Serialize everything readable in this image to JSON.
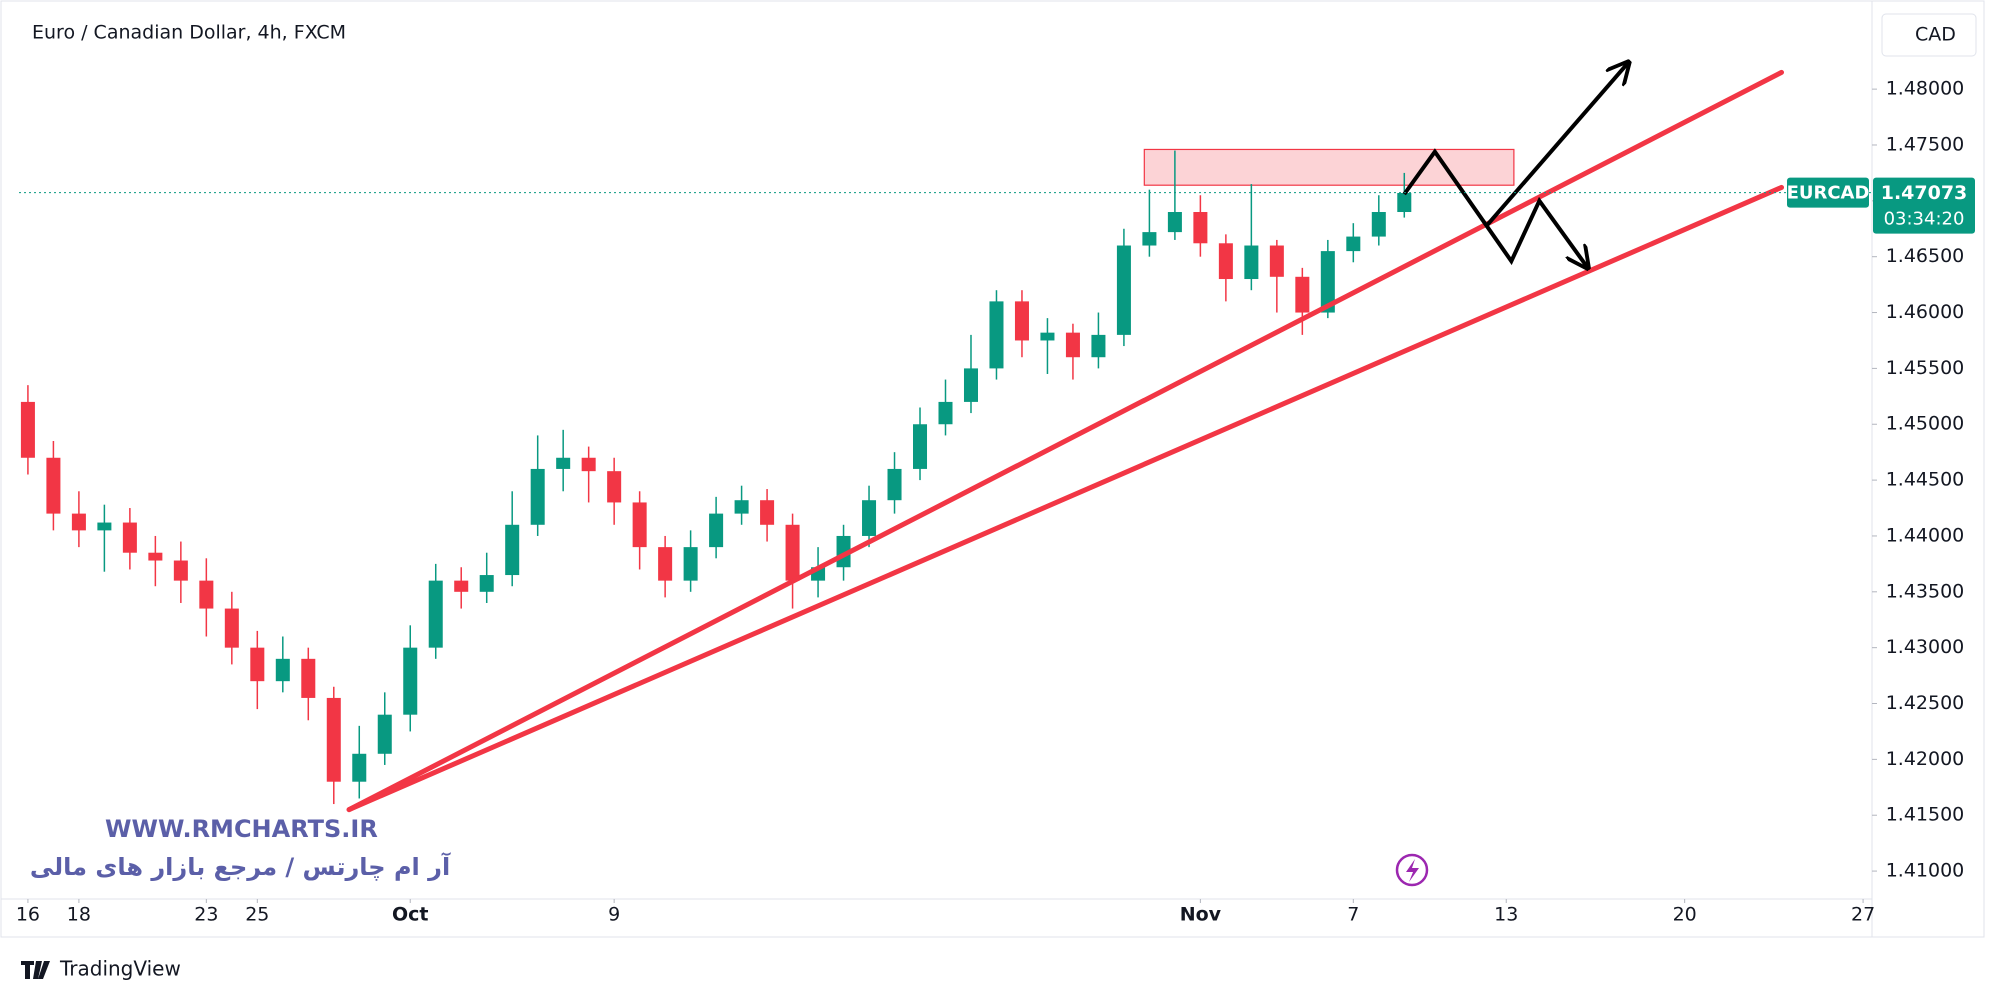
{
  "chart_data": {
    "type": "candlestick",
    "title": "Euro / Canadian Dollar, 4h, FXCM",
    "currency": "CAD",
    "symbol": "EURCAD",
    "last_price": 1.47073,
    "countdown": "03:34:20",
    "watermark": "WWW.RMCHARTS.IR",
    "watermark_subtitle": "آر ام چارتس / مرجع بازار های مالی",
    "brand": "TradingView",
    "grid": false,
    "up_color": "#089981",
    "down_color": "#f23645",
    "xlim": [
      15.65,
      88.35
    ],
    "ylim": [
      1.4075,
      1.4878
    ],
    "xticks": [
      18,
      25,
      {
        "value": 31,
        "label": "Oct"
      },
      {
        "value": 39,
        "label": "9"
      },
      16,
      23,
      {
        "value": 62,
        "label": "Nov"
      },
      {
        "value": 68,
        "label": "7"
      },
      {
        "value": 74,
        "label": "13"
      },
      {
        "value": 81,
        "label": "20"
      },
      {
        "value": 88,
        "label": "27"
      }
    ],
    "yticks": [
      {
        "value": 1.41,
        "label": "1.41000"
      },
      {
        "value": 1.415,
        "label": "1.41500"
      },
      {
        "value": 1.42,
        "label": "1.42000"
      },
      {
        "value": 1.425,
        "label": "1.42500"
      },
      {
        "value": 1.43,
        "label": "1.43000"
      },
      {
        "value": 1.435,
        "label": "1.43500"
      },
      {
        "value": 1.44,
        "label": "1.44000"
      },
      {
        "value": 1.445,
        "label": "1.44500"
      },
      {
        "value": 1.45,
        "label": "1.45000"
      },
      {
        "value": 1.455,
        "label": "1.45500"
      },
      {
        "value": 1.46,
        "label": "1.46000"
      },
      {
        "value": 1.465,
        "label": "1.46500"
      },
      {
        "value": 1.47,
        "label": "1.47000"
      },
      {
        "value": 1.475,
        "label": "1.47500"
      },
      {
        "value": 1.48,
        "label": "1.48000"
      }
    ],
    "x": [
      16,
      17,
      18,
      19,
      20,
      21,
      22,
      23,
      24,
      25,
      26,
      27,
      28,
      29,
      30,
      31,
      32,
      33,
      34,
      35,
      36,
      37,
      38,
      39,
      40,
      41,
      42,
      43,
      44,
      45,
      46,
      47,
      48,
      49,
      50,
      51,
      52,
      53,
      54,
      55,
      56,
      57,
      58,
      59,
      60,
      61,
      62,
      63,
      64,
      65,
      66,
      67,
      68,
      69,
      70
    ],
    "open": [
      1.452,
      1.447,
      1.442,
      1.4405,
      1.4412,
      1.4385,
      1.4378,
      1.436,
      1.4335,
      1.43,
      1.427,
      1.429,
      1.4255,
      1.418,
      1.4205,
      1.424,
      1.43,
      1.436,
      1.435,
      1.4365,
      1.441,
      1.446,
      1.447,
      1.4458,
      1.443,
      1.439,
      1.436,
      1.439,
      1.442,
      1.4432,
      1.441,
      1.436,
      1.4372,
      1.44,
      1.4432,
      1.446,
      1.45,
      1.452,
      1.455,
      1.461,
      1.4575,
      1.4582,
      1.456,
      1.458,
      1.466,
      1.4672,
      1.469,
      1.4662,
      1.463,
      1.466,
      1.4632,
      1.46,
      1.4655,
      1.4668,
      1.469
    ],
    "high": [
      1.4535,
      1.4485,
      1.444,
      1.4428,
      1.4425,
      1.44,
      1.4395,
      1.438,
      1.435,
      1.4315,
      1.431,
      1.43,
      1.4265,
      1.423,
      1.426,
      1.432,
      1.4375,
      1.4372,
      1.4385,
      1.444,
      1.449,
      1.4495,
      1.448,
      1.447,
      1.444,
      1.44,
      1.4405,
      1.4435,
      1.4445,
      1.4442,
      1.442,
      1.439,
      1.441,
      1.4445,
      1.4475,
      1.4515,
      1.454,
      1.458,
      1.462,
      1.462,
      1.4595,
      1.459,
      1.46,
      1.4675,
      1.471,
      1.4745,
      1.4705,
      1.467,
      1.4715,
      1.4665,
      1.464,
      1.4665,
      1.468,
      1.4705,
      1.4725
    ],
    "low": [
      1.4455,
      1.4405,
      1.439,
      1.4368,
      1.437,
      1.4355,
      1.434,
      1.431,
      1.4285,
      1.4245,
      1.426,
      1.4235,
      1.416,
      1.4165,
      1.4195,
      1.4225,
      1.429,
      1.4335,
      1.434,
      1.4355,
      1.44,
      1.444,
      1.443,
      1.441,
      1.437,
      1.4345,
      1.435,
      1.438,
      1.441,
      1.4395,
      1.4335,
      1.4345,
      1.436,
      1.439,
      1.442,
      1.445,
      1.449,
      1.451,
      1.454,
      1.456,
      1.4545,
      1.454,
      1.455,
      1.457,
      1.465,
      1.4665,
      1.465,
      1.461,
      1.462,
      1.46,
      1.458,
      1.4595,
      1.4645,
      1.466,
      1.4685
    ],
    "close": [
      1.447,
      1.442,
      1.4405,
      1.4412,
      1.4385,
      1.4378,
      1.436,
      1.4335,
      1.43,
      1.427,
      1.429,
      1.4255,
      1.418,
      1.4205,
      1.424,
      1.43,
      1.436,
      1.435,
      1.4365,
      1.441,
      1.446,
      1.447,
      1.4458,
      1.443,
      1.439,
      1.436,
      1.439,
      1.442,
      1.4432,
      1.441,
      1.436,
      1.4372,
      1.44,
      1.4432,
      1.446,
      1.45,
      1.452,
      1.455,
      1.461,
      1.4575,
      1.4582,
      1.456,
      1.458,
      1.466,
      1.4672,
      1.469,
      1.4662,
      1.463,
      1.466,
      1.4632,
      1.46,
      1.4655,
      1.4668,
      1.469,
      1.4707
    ],
    "trend_lines": [
      {
        "color": "#f23645",
        "x": [
          28.6,
          84.8
        ],
        "y": [
          1.4155,
          1.4815
        ]
      },
      {
        "color": "#f23645",
        "x": [
          28.6,
          84.8
        ],
        "y": [
          1.4155,
          1.4712
        ]
      }
    ],
    "zone": {
      "color": "#f23645",
      "x": [
        59.8,
        74.3
      ],
      "y": [
        1.4714,
        1.4746
      ]
    },
    "arrows": [
      {
        "color": "#000000",
        "x": [
          70.0,
          71.2,
          74.2,
          75.3,
          77.2
        ],
        "y": [
          1.4706,
          1.4744,
          1.4646,
          1.47,
          1.464
        ]
      },
      {
        "color": "#000000",
        "x": [
          73.2,
          78.8
        ],
        "y": [
          1.4677,
          1.4824
        ]
      }
    ]
  }
}
